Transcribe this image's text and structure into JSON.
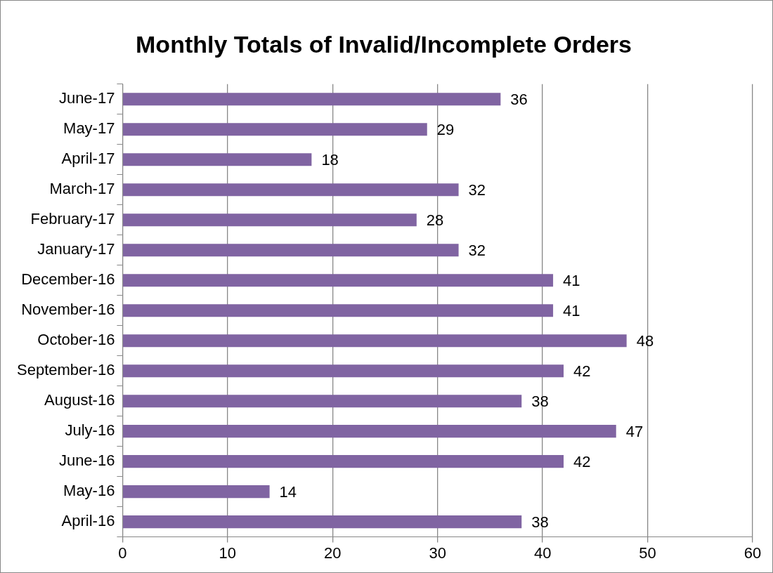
{
  "chart_data": {
    "type": "bar",
    "orientation": "horizontal",
    "title": "Monthly Totals of Invalid/Incomplete Orders",
    "categories": [
      "June-17",
      "May-17",
      "April-17",
      "March-17",
      "February-17",
      "January-17",
      "December-16",
      "November-16",
      "October-16",
      "September-16",
      "August-16",
      "July-16",
      "June-16",
      "May-16",
      "April-16"
    ],
    "values": [
      36,
      29,
      18,
      32,
      28,
      32,
      41,
      41,
      48,
      42,
      38,
      47,
      42,
      14,
      38
    ],
    "color": "#8064a2",
    "xlim": [
      0,
      60
    ],
    "xticks": [
      0,
      10,
      20,
      30,
      40,
      50,
      60
    ],
    "grid": "x",
    "data_labels": true,
    "legend": false
  }
}
